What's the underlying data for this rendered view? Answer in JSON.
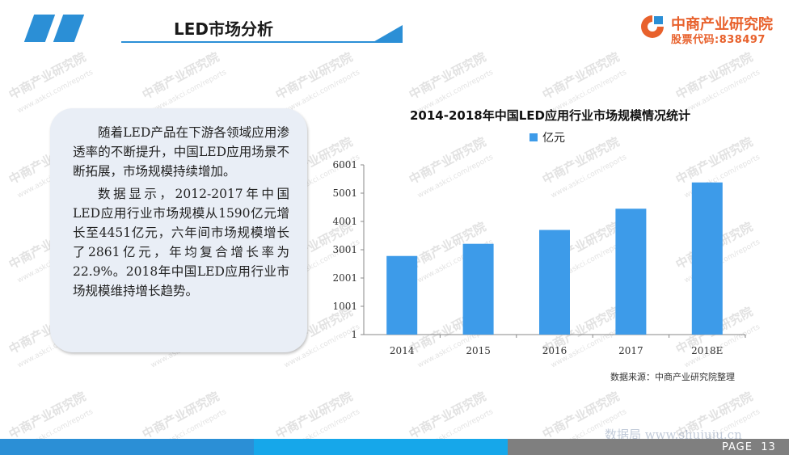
{
  "header": {
    "title": "LED市场分析",
    "brand_color": "#2b8fd6"
  },
  "logo": {
    "name": "中商产业研究院",
    "code": "股票代码:838497",
    "color": "#e8612c"
  },
  "text_box": {
    "paragraphs": [
      "随着LED产品在下游各领域应用渗透率的不断提升，中国LED应用场景不断拓展，市场规模持续增加。",
      "数据显示，2012-2017年中国LED应用行业市场规模从1590亿元增长至4451亿元，六年间市场规模增长了2861亿元，年均复合增长率为22.9%。2018年中国LED应用行业市场规模维持增长趋势。"
    ]
  },
  "chart_data": {
    "type": "bar",
    "title": "2014-2018年中国LED应用行业市场规模情况统计",
    "categories": [
      "2014",
      "2015",
      "2016",
      "2017",
      "2018E"
    ],
    "series": [
      {
        "name": "亿元",
        "values": [
          2780,
          3210,
          3700,
          4451,
          5380
        ],
        "color": "#3d9be9"
      }
    ],
    "y_ticks": [
      "1",
      "1001",
      "2001",
      "3001",
      "4001",
      "5001",
      "6001"
    ],
    "ylim": [
      1,
      6001
    ],
    "grid": false,
    "legend": "top-center",
    "source": "数据来源：中商产业研究院整理"
  },
  "watermark": {
    "text": "中商产业研究院",
    "sub": "www.askci.com/reports"
  },
  "footer": {
    "page_label": "PAGE",
    "page_number": "13",
    "site_watermark": "数据局 www.shujuju.cn"
  }
}
